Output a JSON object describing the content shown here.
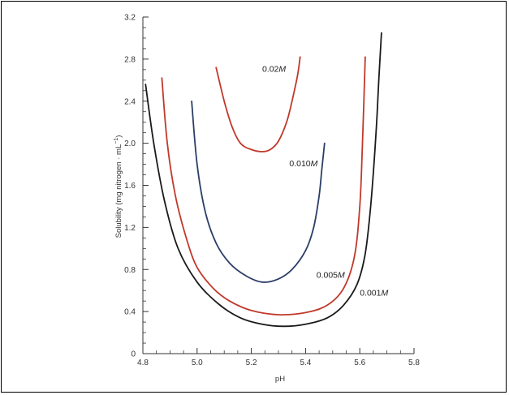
{
  "chart_data": {
    "type": "line",
    "title": "",
    "xlabel": "pH",
    "ylabel": "Solubility (mg nitrogen · mL",
    "ylabel_superscript": "−1",
    "ylabel_close": ")",
    "xlim": [
      4.8,
      5.8
    ],
    "ylim": [
      0,
      3.2
    ],
    "xticks": [
      "4.8",
      "5.0",
      "5.2",
      "5.4",
      "5.6",
      "5.8"
    ],
    "yticks": [
      "0",
      "0.4",
      "0.8",
      "1.2",
      "1.6",
      "2.0",
      "2.4",
      "2.8",
      "3.2"
    ],
    "grid": false,
    "series": [
      {
        "name": "0.02M",
        "value": "0.02",
        "unit": "M",
        "color": "#c0392b",
        "label_at": [
          5.24,
          2.68
        ],
        "x": [
          5.07,
          5.1,
          5.13,
          5.16,
          5.2,
          5.24,
          5.27,
          5.3,
          5.33,
          5.35,
          5.37,
          5.38
        ],
        "y": [
          2.72,
          2.4,
          2.15,
          2.0,
          1.94,
          1.92,
          1.94,
          2.02,
          2.2,
          2.4,
          2.64,
          2.82
        ]
      },
      {
        "name": "0.010M",
        "value": "0.010",
        "unit": "M",
        "color": "#2c3e66",
        "label_at": [
          5.34,
          1.78
        ],
        "x": [
          4.98,
          5.0,
          5.03,
          5.07,
          5.12,
          5.18,
          5.24,
          5.3,
          5.35,
          5.4,
          5.43,
          5.45,
          5.46,
          5.47
        ],
        "y": [
          2.4,
          1.8,
          1.35,
          1.05,
          0.86,
          0.74,
          0.68,
          0.71,
          0.8,
          0.98,
          1.2,
          1.5,
          1.75,
          2.0
        ]
      },
      {
        "name": "0.005M",
        "value": "0.005",
        "unit": "M",
        "color": "#c0392b",
        "label_at": [
          5.44,
          0.72
        ],
        "x": [
          4.87,
          4.89,
          4.92,
          4.96,
          5.0,
          5.06,
          5.12,
          5.2,
          5.3,
          5.4,
          5.48,
          5.54,
          5.58,
          5.6,
          5.61,
          5.62
        ],
        "y": [
          2.62,
          2.0,
          1.5,
          1.1,
          0.82,
          0.62,
          0.5,
          0.41,
          0.37,
          0.39,
          0.46,
          0.62,
          0.92,
          1.4,
          2.0,
          2.82
        ]
      },
      {
        "name": "0.001M",
        "value": "0.001",
        "unit": "M",
        "color": "#1a1a1a",
        "label_at": [
          5.6,
          0.55
        ],
        "x": [
          4.81,
          4.84,
          4.88,
          4.93,
          5.0,
          5.08,
          5.16,
          5.24,
          5.32,
          5.4,
          5.48,
          5.54,
          5.59,
          5.62,
          5.64,
          5.66,
          5.67,
          5.68
        ],
        "y": [
          2.56,
          2.0,
          1.45,
          1.0,
          0.68,
          0.47,
          0.34,
          0.28,
          0.26,
          0.28,
          0.34,
          0.46,
          0.66,
          0.95,
          1.4,
          2.1,
          2.6,
          3.05
        ]
      }
    ]
  }
}
